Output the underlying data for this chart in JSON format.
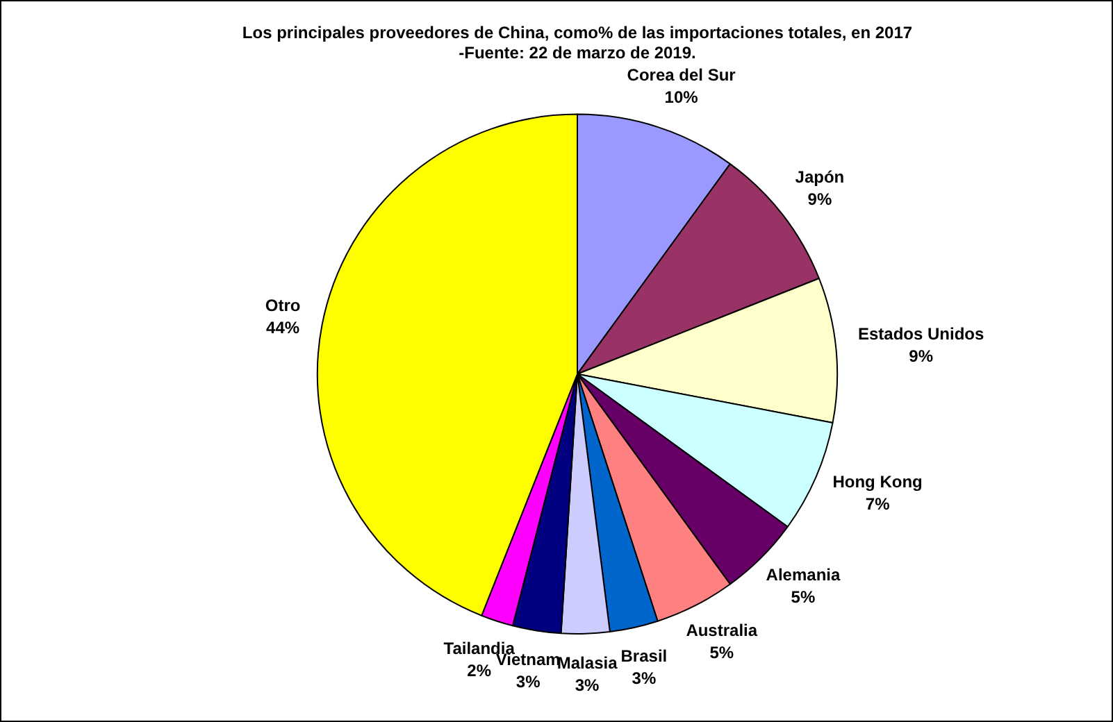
{
  "chart_data": {
    "type": "pie",
    "title": "Los principales proveedores de China, como% de las importaciones totales, en 2017\n-Fuente: 22 de marzo de 2019.",
    "categories": [
      "Corea del Sur",
      "Japón",
      "Estados Unidos",
      "Hong Kong",
      "Alemania",
      "Australia",
      "Brasil",
      "Malasia",
      "Vietnam",
      "Tailandia",
      "Otro"
    ],
    "values": [
      10,
      9,
      9,
      7,
      5,
      5,
      3,
      3,
      3,
      2,
      44
    ],
    "value_labels": [
      "10%",
      "9%",
      "9%",
      "7%",
      "5%",
      "5%",
      "3%",
      "3%",
      "3%",
      "2%",
      "44%"
    ],
    "colors": [
      "#9999ff",
      "#993366",
      "#ffffcc",
      "#ccffff",
      "#660066",
      "#ff8080",
      "#0066cc",
      "#ccccff",
      "#000080",
      "#ff00ff",
      "#ffff00"
    ],
    "legend": false
  }
}
